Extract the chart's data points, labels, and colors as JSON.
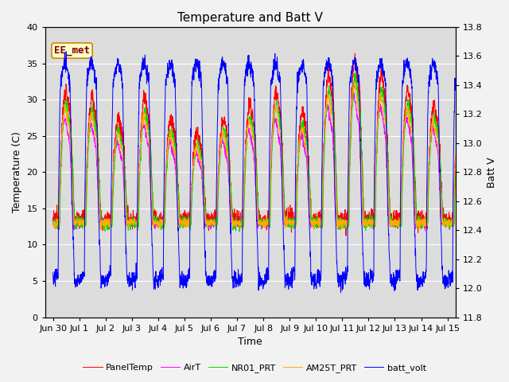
{
  "title": "Temperature and Batt V",
  "xlabel": "Time",
  "ylabel_left": "Temperature (C)",
  "ylabel_right": "Batt V",
  "annotation": "EE_met",
  "xlim_start": -0.3,
  "xlim_end": 15.3,
  "ylim_left": [
    0,
    40
  ],
  "ylim_right": [
    11.8,
    13.8
  ],
  "xtick_labels": [
    "Jun 30",
    "Jul 1",
    "Jul 2",
    "Jul 3",
    "Jul 4",
    "Jul 5",
    "Jul 6",
    "Jul 7",
    "Jul 8",
    "Jul 9",
    "Jul 10",
    "Jul 11",
    "Jul 12",
    "Jul 13",
    "Jul 14",
    "Jul 15"
  ],
  "xtick_positions": [
    0,
    1,
    2,
    3,
    4,
    5,
    6,
    7,
    8,
    9,
    10,
    11,
    12,
    13,
    14,
    15
  ],
  "ytick_left": [
    0,
    5,
    10,
    15,
    20,
    25,
    30,
    35,
    40
  ],
  "ytick_right": [
    11.8,
    12.0,
    12.2,
    12.4,
    12.6,
    12.8,
    13.0,
    13.2,
    13.4,
    13.6,
    13.8
  ],
  "line_colors": {
    "PanelTemp": "#ff0000",
    "AirT": "#ff00ff",
    "NR01_PRT": "#00dd00",
    "AM25T_PRT": "#ffaa00",
    "batt_volt": "#0000ff"
  },
  "bg_color": "#e8e8e8",
  "plot_bg_color": "#dcdcdc",
  "title_fontsize": 11,
  "axis_fontsize": 9,
  "tick_fontsize": 8,
  "legend_fontsize": 8,
  "annotation_fontsize": 9,
  "annotation_color": "#800000",
  "annotation_bg": "#ffffcc",
  "annotation_border": "#cc8800"
}
